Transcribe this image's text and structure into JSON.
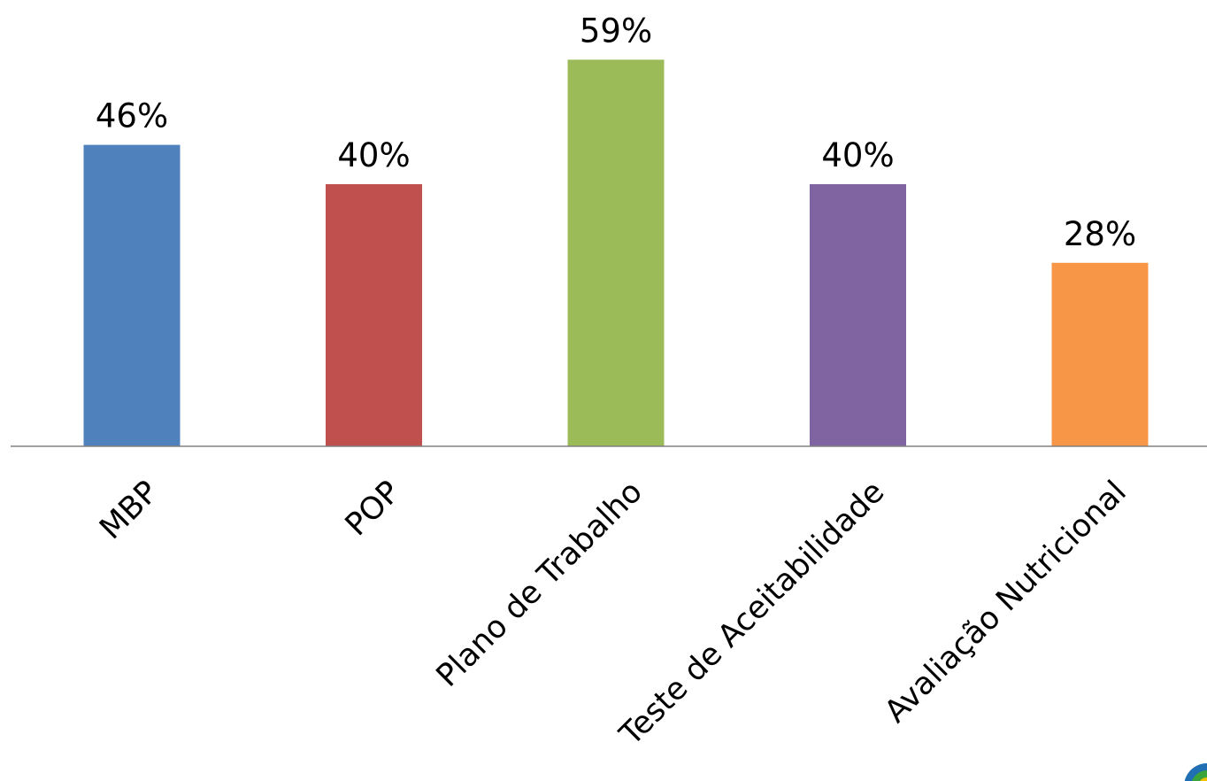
{
  "chart_data": {
    "type": "bar",
    "categories": [
      "MBP",
      "POP",
      "Plano de Trabalho",
      "Teste de Aceitabilidade",
      "Avaliação Nutricional"
    ],
    "values": [
      46,
      40,
      59,
      40,
      28
    ],
    "value_labels": [
      "46%",
      "40%",
      "59%",
      "40%",
      "28%"
    ],
    "colors": [
      "#4f81bd",
      "#c0504d",
      "#9bbb59",
      "#8064a2",
      "#f79646"
    ],
    "ylim": [
      0,
      100
    ],
    "grid": false,
    "legend": false,
    "title": "",
    "xlabel": "",
    "ylabel": ""
  },
  "axis_color": "#808080",
  "logo_colors": [
    "#1f6fb2",
    "#3aa33a",
    "#f2c200"
  ]
}
